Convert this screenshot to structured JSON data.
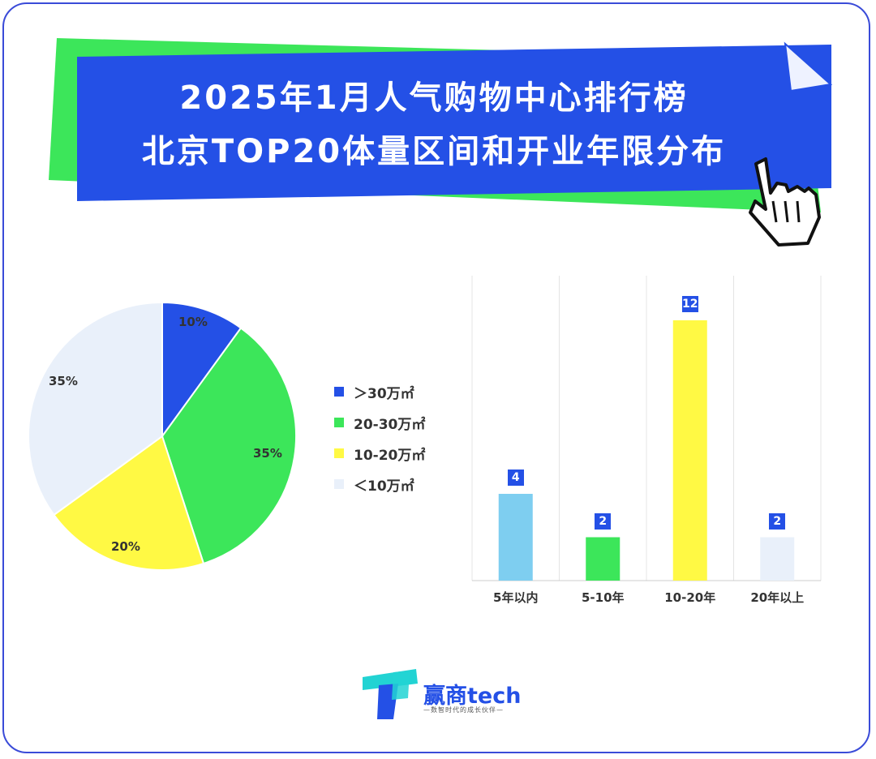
{
  "title": {
    "line1": "2025年1月人气购物中心排行榜",
    "line2": "北京TOP20体量区间和开业年限分布"
  },
  "colors": {
    "blue": "#2450e6",
    "green": "#3ce65a",
    "yellow": "#fff944",
    "light": "#e9f0fa",
    "lightblue": "#7ecef0",
    "frame": "#3a4bd8"
  },
  "legend": [
    {
      "label": "＞30万㎡",
      "color": "#2450e6"
    },
    {
      "label": "20-30万㎡",
      "color": "#3ce65a"
    },
    {
      "label": "10-20万㎡",
      "color": "#fff944"
    },
    {
      "label": "＜10万㎡",
      "color": "#e9f0fa"
    }
  ],
  "chart_data": [
    {
      "type": "pie",
      "labels": [
        "＞30万㎡",
        "20-30万㎡",
        "10-20万㎡",
        "＜10万㎡"
      ],
      "values": [
        10,
        35,
        20,
        35
      ],
      "value_labels": [
        "10%",
        "35%",
        "20%",
        "35%"
      ],
      "colors": [
        "#2450e6",
        "#3ce65a",
        "#fff944",
        "#e9f0fa"
      ],
      "legend_position": "right"
    },
    {
      "type": "bar",
      "categories": [
        "5年以内",
        "5-10年",
        "10-20年",
        "20年以上"
      ],
      "values": [
        4,
        2,
        12,
        2
      ],
      "value_labels": [
        "4",
        "2",
        "12",
        "2"
      ],
      "colors": [
        "#7ecef0",
        "#3ce65a",
        "#fff944",
        "#e9f0fa"
      ],
      "ylim": [
        0,
        13
      ],
      "grid": "vertical separators"
    }
  ],
  "logo": {
    "name": "赢商tech",
    "slogan": "—数智时代的成长伙伴—"
  }
}
